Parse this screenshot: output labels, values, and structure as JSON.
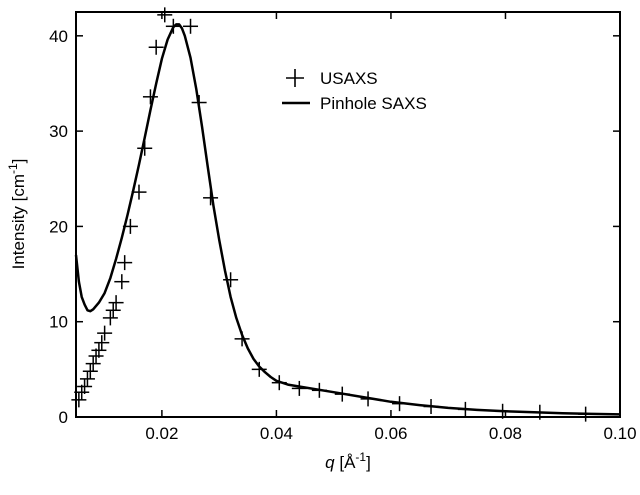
{
  "chart_data": {
    "type": "scatter",
    "xlabel": {
      "var": "q",
      "rest": " [Å",
      "sup": "-1",
      "close": "]"
    },
    "ylabel": {
      "main": "Intensity [cm",
      "sup": "-1",
      "close": "]"
    },
    "xlim": [
      0.005,
      0.1
    ],
    "ylim": [
      0,
      42.5
    ],
    "xticks": [
      0.02,
      0.04,
      0.06,
      0.08,
      0.1
    ],
    "xtick_labels": [
      "0.02",
      "0.04",
      "0.06",
      "0.08",
      "0.10"
    ],
    "yticks": [
      0,
      10,
      20,
      30,
      40
    ],
    "ytick_labels": [
      "0",
      "10",
      "20",
      "30",
      "40"
    ],
    "grid": false,
    "legend_position": "top-right",
    "series": [
      {
        "name": "USAXS",
        "marker": "plus",
        "x": [
          0.0055,
          0.006,
          0.0065,
          0.007,
          0.0075,
          0.008,
          0.0085,
          0.009,
          0.0095,
          0.01,
          0.011,
          0.0115,
          0.012,
          0.013,
          0.0135,
          0.0145,
          0.016,
          0.017,
          0.018,
          0.019,
          0.0205,
          0.022,
          0.025,
          0.0265,
          0.0285,
          0.032,
          0.034,
          0.037,
          0.0405,
          0.044,
          0.0475,
          0.0515,
          0.056,
          0.0615,
          0.067,
          0.073,
          0.0795,
          0.086,
          0.094
        ],
        "y": [
          1.8,
          2.6,
          3.2,
          4.0,
          4.8,
          5.6,
          6.4,
          7.0,
          7.8,
          8.8,
          10.4,
          11.2,
          12.0,
          14.2,
          16.2,
          20.0,
          23.6,
          28.2,
          33.6,
          38.8,
          42.2,
          41.0,
          41.0,
          33.0,
          23.0,
          14.4,
          8.2,
          5.0,
          3.6,
          3.0,
          2.8,
          2.4,
          1.9,
          1.4,
          1.1,
          0.8,
          0.6,
          0.5,
          0.3
        ]
      },
      {
        "name": "Pinhole SAXS",
        "marker": "line",
        "x": [
          0.005,
          0.0055,
          0.006,
          0.0065,
          0.007,
          0.0075,
          0.008,
          0.009,
          0.01,
          0.011,
          0.012,
          0.013,
          0.014,
          0.015,
          0.016,
          0.017,
          0.018,
          0.019,
          0.02,
          0.021,
          0.022,
          0.0225,
          0.023,
          0.0235,
          0.024,
          0.025,
          0.026,
          0.027,
          0.028,
          0.029,
          0.03,
          0.031,
          0.032,
          0.033,
          0.034,
          0.035,
          0.036,
          0.037,
          0.038,
          0.039,
          0.04,
          0.042,
          0.045,
          0.05,
          0.055,
          0.06,
          0.065,
          0.07,
          0.075,
          0.08,
          0.085,
          0.09,
          0.095,
          0.1
        ],
        "y": [
          17.0,
          14.2,
          12.6,
          11.8,
          11.2,
          11.1,
          11.3,
          12.0,
          13.0,
          14.6,
          16.6,
          18.8,
          21.2,
          23.8,
          26.5,
          29.3,
          32.2,
          35.0,
          37.6,
          39.6,
          40.9,
          41.2,
          41.2,
          40.8,
          40.0,
          37.7,
          34.4,
          30.5,
          26.3,
          22.2,
          18.6,
          15.4,
          12.6,
          10.4,
          8.6,
          7.2,
          6.1,
          5.3,
          4.7,
          4.2,
          3.8,
          3.4,
          3.1,
          2.6,
          2.1,
          1.6,
          1.25,
          0.95,
          0.75,
          0.6,
          0.5,
          0.4,
          0.33,
          0.27
        ]
      }
    ]
  }
}
